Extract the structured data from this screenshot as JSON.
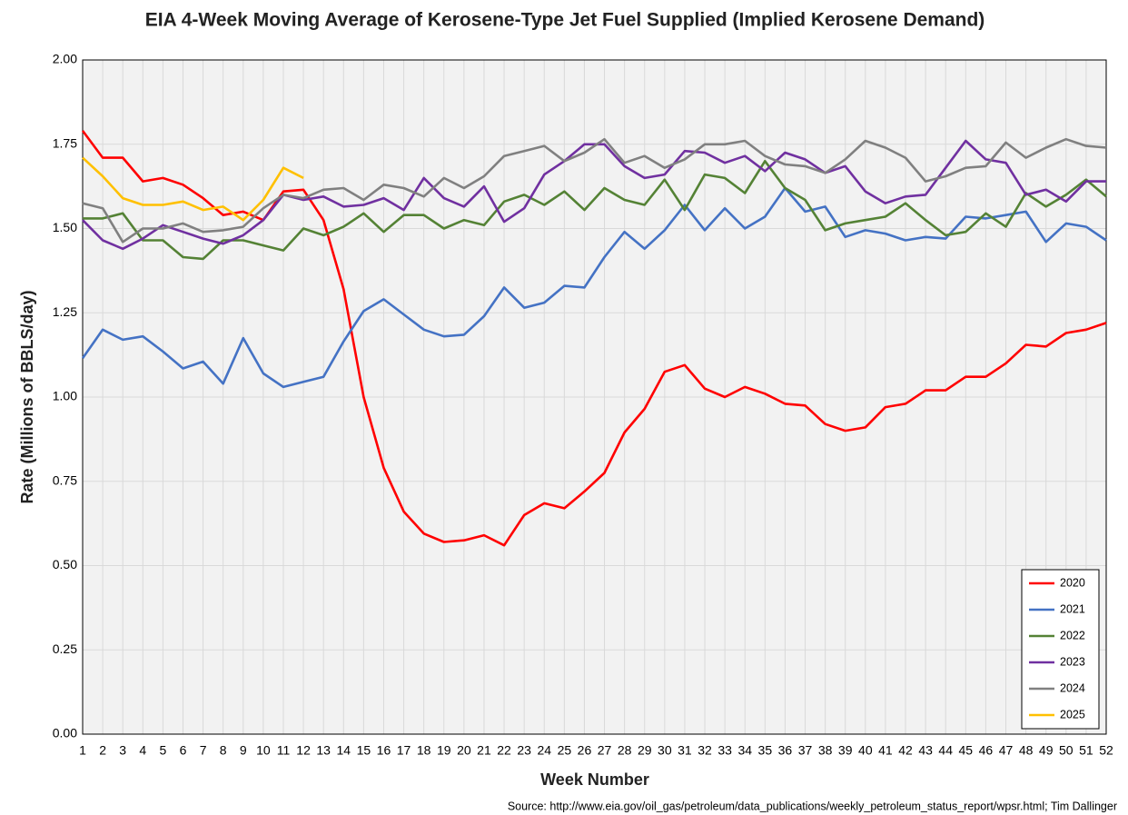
{
  "chart_data": {
    "type": "line",
    "title": "EIA 4-Week Moving Average of Kerosene-Type Jet Fuel Supplied (Implied Kerosene Demand)",
    "x_label": "Week Number",
    "y_label": "Rate (Millions of BBLS/day)",
    "source": "Source: http://www.eia.gov/oil_gas/petroleum/data_publications/weekly_petroleum_status_report/wpsr.html; Tim Dallinger",
    "categories": [
      "1",
      "2",
      "3",
      "4",
      "5",
      "6",
      "7",
      "8",
      "9",
      "10",
      "11",
      "12",
      "13",
      "14",
      "15",
      "16",
      "17",
      "18",
      "19",
      "20",
      "21",
      "22",
      "23",
      "24",
      "25",
      "26",
      "27",
      "28",
      "29",
      "30",
      "31",
      "32",
      "33",
      "34",
      "35",
      "36",
      "37",
      "38",
      "39",
      "40",
      "41",
      "42",
      "43",
      "44",
      "45",
      "46",
      "47",
      "48",
      "49",
      "50",
      "51",
      "52"
    ],
    "ylim": [
      0,
      2
    ],
    "yticks": [
      {
        "value": 0,
        "label": "0.00"
      },
      {
        "value": 0.25,
        "label": "0.25"
      },
      {
        "value": 0.5,
        "label": "0.50"
      },
      {
        "value": 0.75,
        "label": "0.75"
      },
      {
        "value": 1,
        "label": "1.00"
      },
      {
        "value": 1.25,
        "label": "1.25"
      },
      {
        "value": 1.5,
        "label": "1.50"
      },
      {
        "value": 1.75,
        "label": "1.75"
      },
      {
        "value": 2,
        "label": "2.00"
      }
    ],
    "grid": true,
    "legend": "bottom right",
    "series": [
      {
        "name": "2020",
        "color": "#ff0000",
        "values": [
          1.79,
          1.71,
          1.71,
          1.64,
          1.65,
          1.63,
          1.59,
          1.54,
          1.55,
          1.525,
          1.61,
          1.615,
          1.525,
          1.32,
          1.0,
          0.79,
          0.66,
          0.595,
          0.57,
          0.575,
          0.59,
          0.56,
          0.65,
          0.685,
          0.67,
          0.72,
          0.775,
          0.895,
          0.965,
          1.075,
          1.095,
          1.025,
          1.0,
          1.03,
          1.01,
          0.98,
          0.975,
          0.92,
          0.9,
          0.91,
          0.97,
          0.98,
          1.02,
          1.02,
          1.06,
          1.06,
          1.1,
          1.155,
          1.15,
          1.19,
          1.2,
          1.22
        ]
      },
      {
        "name": "2021",
        "color": "#4472c4",
        "values": [
          1.115,
          1.2,
          1.17,
          1.18,
          1.135,
          1.085,
          1.105,
          1.04,
          1.175,
          1.07,
          1.03,
          1.045,
          1.06,
          1.165,
          1.255,
          1.29,
          1.245,
          1.2,
          1.18,
          1.185,
          1.24,
          1.325,
          1.265,
          1.28,
          1.33,
          1.325,
          1.415,
          1.49,
          1.44,
          1.495,
          1.57,
          1.495,
          1.56,
          1.5,
          1.535,
          1.62,
          1.55,
          1.565,
          1.475,
          1.495,
          1.485,
          1.465,
          1.475,
          1.47,
          1.535,
          1.53,
          1.54,
          1.55,
          1.46,
          1.515,
          1.505,
          1.465
        ]
      },
      {
        "name": "2022",
        "color": "#548235",
        "values": [
          1.53,
          1.53,
          1.545,
          1.465,
          1.465,
          1.415,
          1.41,
          1.465,
          1.465,
          1.45,
          1.435,
          1.5,
          1.48,
          1.505,
          1.545,
          1.49,
          1.54,
          1.54,
          1.5,
          1.525,
          1.51,
          1.58,
          1.6,
          1.57,
          1.61,
          1.555,
          1.62,
          1.585,
          1.57,
          1.645,
          1.555,
          1.66,
          1.65,
          1.605,
          1.7,
          1.62,
          1.585,
          1.495,
          1.515,
          1.525,
          1.535,
          1.575,
          1.525,
          1.48,
          1.49,
          1.545,
          1.505,
          1.605,
          1.565,
          1.6,
          1.645,
          1.595
        ]
      },
      {
        "name": "2023",
        "color": "#7030a0",
        "values": [
          1.525,
          1.465,
          1.44,
          1.47,
          1.51,
          1.49,
          1.47,
          1.455,
          1.48,
          1.525,
          1.6,
          1.585,
          1.595,
          1.565,
          1.57,
          1.59,
          1.555,
          1.65,
          1.59,
          1.565,
          1.625,
          1.52,
          1.56,
          1.66,
          1.7,
          1.75,
          1.75,
          1.685,
          1.65,
          1.66,
          1.73,
          1.725,
          1.695,
          1.715,
          1.67,
          1.725,
          1.705,
          1.665,
          1.685,
          1.61,
          1.575,
          1.595,
          1.6,
          1.68,
          1.76,
          1.705,
          1.695,
          1.6,
          1.615,
          1.58,
          1.64,
          1.64
        ]
      },
      {
        "name": "2024",
        "color": "#808080",
        "values": [
          1.575,
          1.56,
          1.46,
          1.5,
          1.5,
          1.515,
          1.49,
          1.495,
          1.505,
          1.56,
          1.6,
          1.59,
          1.615,
          1.62,
          1.585,
          1.63,
          1.62,
          1.595,
          1.65,
          1.62,
          1.655,
          1.715,
          1.73,
          1.745,
          1.7,
          1.725,
          1.765,
          1.695,
          1.715,
          1.68,
          1.705,
          1.75,
          1.75,
          1.76,
          1.715,
          1.69,
          1.685,
          1.665,
          1.705,
          1.76,
          1.74,
          1.71,
          1.64,
          1.655,
          1.68,
          1.685,
          1.755,
          1.71,
          1.74,
          1.765,
          1.745,
          1.74
        ]
      },
      {
        "name": "2025",
        "color": "#ffc000",
        "values": [
          1.71,
          1.655,
          1.59,
          1.57,
          1.57,
          1.58,
          1.555,
          1.565,
          1.525,
          1.585,
          1.68,
          1.65,
          null,
          null,
          null,
          null,
          null,
          null,
          null,
          null,
          null,
          null,
          null,
          null,
          null,
          null,
          null,
          null,
          null,
          null,
          null,
          null,
          null,
          null,
          null,
          null,
          null,
          null,
          null,
          null,
          null,
          null,
          null,
          null,
          null,
          null,
          null,
          null,
          null,
          null,
          null,
          null
        ]
      }
    ]
  }
}
